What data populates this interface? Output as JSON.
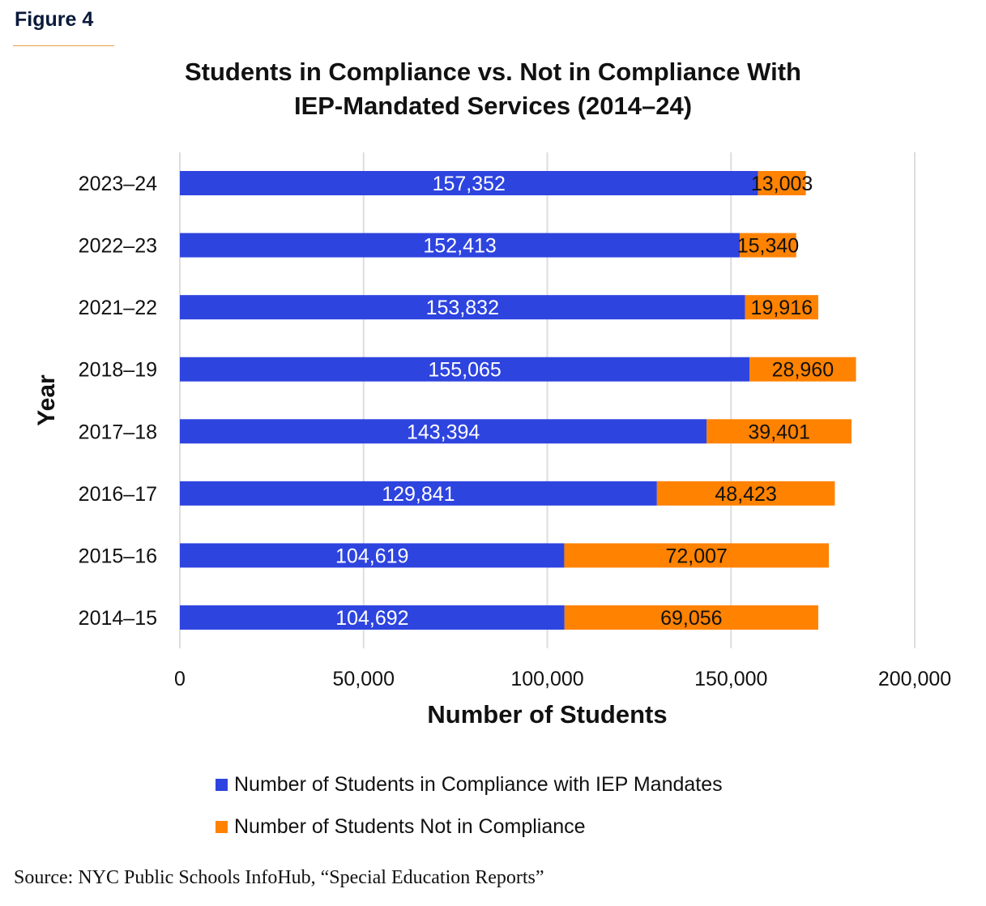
{
  "figure_label": "Figure 4",
  "source": "Source: NYC Public Schools InfoHub, “Special Education Reports”",
  "colors": {
    "compliance": "#2e44df",
    "not_compliance": "#ff8200",
    "grid": "#dddddd"
  },
  "chart_data": {
    "type": "bar",
    "orientation": "horizontal",
    "stacked": true,
    "title_lines": [
      "Students in Compliance vs. Not in Compliance With",
      "IEP-Mandated Services (2014–24)"
    ],
    "xlabel": "Number of Students",
    "ylabel": "Year",
    "xlim": [
      0,
      200000
    ],
    "xticks": [
      0,
      50000,
      100000,
      150000,
      200000
    ],
    "xtick_labels": [
      "0",
      "50,000",
      "100,000",
      "150,000",
      "200,000"
    ],
    "grid": "vertical",
    "categories": [
      "2023–24",
      "2022–23",
      "2021–22",
      "2018–19",
      "2017–18",
      "2016–17",
      "2015–16",
      "2014–15"
    ],
    "series": [
      {
        "name": "Number of Students in Compliance with IEP Mandates",
        "values": [
          157352,
          152413,
          153832,
          155065,
          143394,
          129841,
          104619,
          104692
        ],
        "labels": [
          "157,352",
          "152,413",
          "153,832",
          "155,065",
          "143,394",
          "129,841",
          "104,619",
          "104,692"
        ]
      },
      {
        "name": "Number of Students Not in Compliance",
        "values": [
          13003,
          15340,
          19916,
          28960,
          39401,
          48423,
          72007,
          69056
        ],
        "labels": [
          "13,003",
          "15,340",
          "19,916",
          "28,960",
          "39,401",
          "48,423",
          "72,007",
          "69,056"
        ]
      }
    ],
    "legend_position": "bottom"
  }
}
